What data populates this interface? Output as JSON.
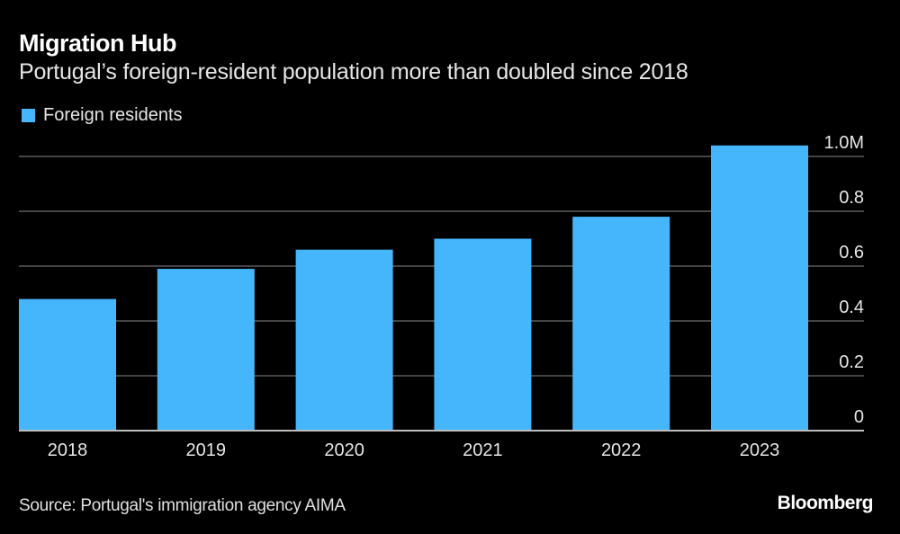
{
  "header": {
    "title": "Migration Hub",
    "subtitle": "Portugal’s foreign-resident population more than doubled since 2018"
  },
  "footer": {
    "source": "Source: Portugal's immigration agency AIMA",
    "brand": "Bloomberg"
  },
  "colors": {
    "background": "#000000",
    "bar": "#45b5fc",
    "gridline": "#5a5a5a",
    "axis": "#bdbdbd"
  },
  "chart_data": {
    "type": "bar",
    "title": "Migration Hub",
    "subtitle": "Portugal’s foreign-resident population more than doubled since 2018",
    "xlabel": "",
    "ylabel": "",
    "categories": [
      "2018",
      "2019",
      "2020",
      "2021",
      "2022",
      "2023"
    ],
    "series": [
      {
        "name": "Foreign residents",
        "color": "#45b5fc",
        "values": [
          0.48,
          0.59,
          0.66,
          0.7,
          0.78,
          1.04
        ]
      }
    ],
    "unit": "million",
    "ylim": [
      0,
      1.0
    ],
    "yticks": [
      0,
      0.2,
      0.4,
      0.6,
      0.8,
      1.0
    ],
    "ytick_labels": [
      "0",
      "0.2",
      "0.4",
      "0.6",
      "0.8",
      "1.0M"
    ],
    "y_axis_side": "right",
    "grid": true,
    "legend": {
      "position": "top-left",
      "entries": [
        "Foreign residents"
      ]
    }
  }
}
